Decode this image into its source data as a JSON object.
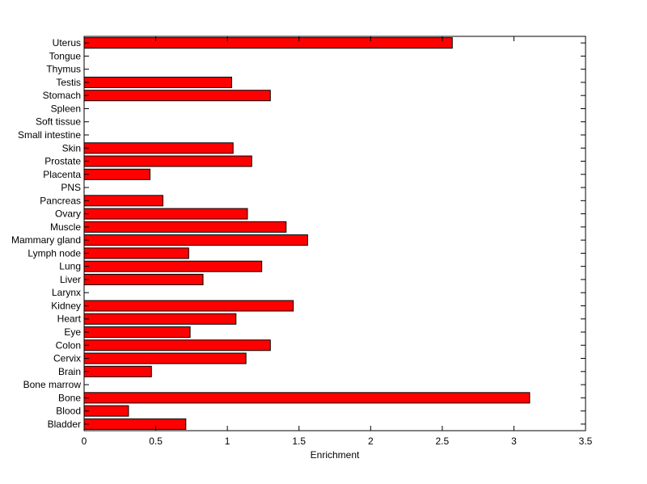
{
  "chart_data": {
    "type": "bar",
    "orientation": "horizontal",
    "xlabel": "Enrichment",
    "ylabel": "",
    "title": "",
    "xlim": [
      0,
      3.5
    ],
    "xticks": [
      0,
      0.5,
      1,
      1.5,
      2,
      2.5,
      3,
      3.5
    ],
    "xtick_labels": [
      "0",
      "0.5",
      "1",
      "1.5",
      "2",
      "2.5",
      "3",
      "3.5"
    ],
    "grid": false,
    "colors": {
      "bar": "#ff0000",
      "edge": "#000000"
    },
    "categories": [
      "Bladder",
      "Blood",
      "Bone",
      "Bone marrow",
      "Brain",
      "Cervix",
      "Colon",
      "Eye",
      "Heart",
      "Kidney",
      "Larynx",
      "Liver",
      "Lung",
      "Lymph node",
      "Mammary gland",
      "Muscle",
      "Ovary",
      "Pancreas",
      "PNS",
      "Placenta",
      "Prostate",
      "Skin",
      "Small intestine",
      "Soft tissue",
      "Spleen",
      "Stomach",
      "Testis",
      "Thymus",
      "Tongue",
      "Uterus"
    ],
    "values": [
      0.71,
      0.31,
      3.11,
      0,
      0.47,
      1.13,
      1.3,
      0.74,
      1.06,
      1.46,
      0,
      0.83,
      1.24,
      0.73,
      1.56,
      1.41,
      1.14,
      0.55,
      0,
      0.46,
      1.17,
      1.04,
      0,
      0,
      0,
      1.3,
      1.03,
      0,
      0,
      2.57
    ]
  }
}
